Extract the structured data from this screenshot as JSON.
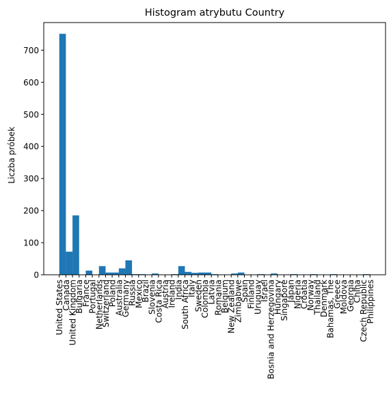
{
  "chart_data": {
    "type": "bar",
    "title": "Histogram atrybutu Country",
    "xlabel": "",
    "ylabel": "Liczba próbek",
    "ylim": [
      0,
      786
    ],
    "yticks": [
      0,
      100,
      200,
      300,
      400,
      500,
      600,
      700
    ],
    "grid": false,
    "legend": "none",
    "colors": {
      "bar": "#1f77b4",
      "axis": "#000000",
      "background": "#ffffff"
    },
    "categories": [
      "United States",
      "Canada",
      "United Kingdom",
      "Bulgaria",
      "France",
      "Portugal",
      "Netherlands",
      "Switzerland",
      "Poland",
      "Australia",
      "Germany",
      "Russia",
      "Mexico",
      "Brazil",
      "Slovenia",
      "Costa Rica",
      "Austria",
      "Ireland",
      "India",
      "South Africa",
      "Italy",
      "Sweden",
      "Colombia",
      "Latvia",
      "Romania",
      "Belgium",
      "New Zealand",
      "Zimbabwe",
      "Spain",
      "Finland",
      "Uruguay",
      "Israel",
      "Bosnia and Herzegovina",
      "Hungary",
      "Singapore",
      "Japan",
      "Nigeria",
      "Croatia",
      "Norway",
      "Thailand",
      "Denmark",
      "Bahamas, The",
      "Greece",
      "Moldova",
      "Georgia",
      "China",
      "Czech Republic",
      "Philippines"
    ],
    "bins": [
      {
        "start": 0,
        "end": 1,
        "value": 751
      },
      {
        "start": 1,
        "end": 2,
        "value": 72
      },
      {
        "start": 2,
        "end": 3,
        "value": 185
      },
      {
        "start": 3,
        "end": 4,
        "value": 1
      },
      {
        "start": 4,
        "end": 5,
        "value": 13
      },
      {
        "start": 5,
        "end": 6,
        "value": 1
      },
      {
        "start": 6,
        "end": 7,
        "value": 27
      },
      {
        "start": 7,
        "end": 9,
        "value": 7
      },
      {
        "start": 9,
        "end": 10,
        "value": 20
      },
      {
        "start": 10,
        "end": 11,
        "value": 45
      },
      {
        "start": 11,
        "end": 12,
        "value": 2
      },
      {
        "start": 12,
        "end": 13,
        "value": 2
      },
      {
        "start": 13,
        "end": 14,
        "value": 1
      },
      {
        "start": 14,
        "end": 15,
        "value": 4
      },
      {
        "start": 15,
        "end": 16,
        "value": 1
      },
      {
        "start": 16,
        "end": 17,
        "value": 1
      },
      {
        "start": 17,
        "end": 18,
        "value": 2
      },
      {
        "start": 18,
        "end": 19,
        "value": 27
      },
      {
        "start": 19,
        "end": 20,
        "value": 9
      },
      {
        "start": 20,
        "end": 21,
        "value": 6
      },
      {
        "start": 21,
        "end": 23,
        "value": 7
      },
      {
        "start": 23,
        "end": 24,
        "value": 2
      },
      {
        "start": 24,
        "end": 25,
        "value": 1
      },
      {
        "start": 25,
        "end": 26,
        "value": 1
      },
      {
        "start": 26,
        "end": 27,
        "value": 4
      },
      {
        "start": 27,
        "end": 28,
        "value": 7
      },
      {
        "start": 28,
        "end": 29,
        "value": 1
      },
      {
        "start": 29,
        "end": 30,
        "value": 1
      },
      {
        "start": 30,
        "end": 31,
        "value": 2
      },
      {
        "start": 31,
        "end": 32,
        "value": 1
      },
      {
        "start": 32,
        "end": 33,
        "value": 4
      },
      {
        "start": 33,
        "end": 34,
        "value": 1
      },
      {
        "start": 34,
        "end": 35,
        "value": 1
      },
      {
        "start": 35,
        "end": 36,
        "value": 2
      },
      {
        "start": 36,
        "end": 37,
        "value": 1
      },
      {
        "start": 37,
        "end": 38,
        "value": 1
      },
      {
        "start": 38,
        "end": 39,
        "value": 2
      },
      {
        "start": 39,
        "end": 40,
        "value": 1
      },
      {
        "start": 40,
        "end": 41,
        "value": 1
      },
      {
        "start": 41,
        "end": 42,
        "value": 2
      },
      {
        "start": 42,
        "end": 43,
        "value": 1
      },
      {
        "start": 43,
        "end": 44,
        "value": 1
      },
      {
        "start": 44,
        "end": 45,
        "value": 1
      },
      {
        "start": 45,
        "end": 46,
        "value": 1
      },
      {
        "start": 46,
        "end": 47,
        "value": 2
      }
    ]
  }
}
